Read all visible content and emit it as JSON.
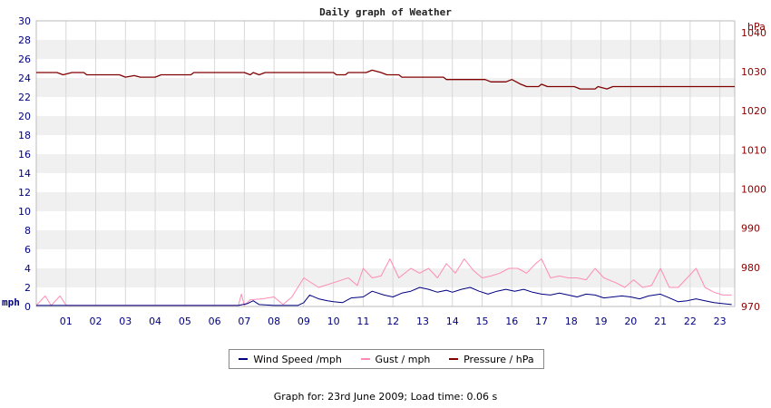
{
  "chart_data": {
    "type": "line",
    "title": "Daily graph of Weather",
    "y_left": {
      "unit": "mph",
      "range": [
        0,
        30
      ],
      "ticks": [
        0,
        2,
        4,
        6,
        8,
        10,
        12,
        14,
        16,
        18,
        20,
        22,
        24,
        26,
        28,
        30
      ]
    },
    "y_right": {
      "unit": "hPa",
      "range": [
        970,
        1043
      ],
      "ticks": [
        970,
        980,
        990,
        1000,
        1010,
        1020,
        1030,
        1040
      ]
    },
    "x": {
      "range": [
        0,
        23.5
      ],
      "tick_labels": [
        "01",
        "02",
        "03",
        "04",
        "05",
        "06",
        "07",
        "08",
        "09",
        "10",
        "11",
        "12",
        "13",
        "14",
        "15",
        "16",
        "17",
        "18",
        "19",
        "20",
        "21",
        "22",
        "23"
      ]
    },
    "grid": true,
    "legend_position": "bottom-center",
    "series": [
      {
        "name": "Wind Speed /mph",
        "axis": "left",
        "color": "#000080",
        "points": [
          [
            0,
            0.1
          ],
          [
            6.8,
            0.1
          ],
          [
            7.1,
            0.3
          ],
          [
            7.3,
            0.6
          ],
          [
            7.5,
            0.2
          ],
          [
            8.0,
            0.1
          ],
          [
            8.8,
            0.1
          ],
          [
            9.0,
            0.4
          ],
          [
            9.2,
            1.2
          ],
          [
            9.5,
            0.8
          ],
          [
            9.8,
            0.6
          ],
          [
            10.0,
            0.5
          ],
          [
            10.3,
            0.4
          ],
          [
            10.6,
            0.9
          ],
          [
            11.0,
            1.0
          ],
          [
            11.3,
            1.6
          ],
          [
            11.7,
            1.2
          ],
          [
            12.0,
            1.0
          ],
          [
            12.3,
            1.4
          ],
          [
            12.6,
            1.6
          ],
          [
            12.9,
            2.0
          ],
          [
            13.2,
            1.8
          ],
          [
            13.5,
            1.5
          ],
          [
            13.8,
            1.7
          ],
          [
            14.0,
            1.5
          ],
          [
            14.3,
            1.8
          ],
          [
            14.6,
            2.0
          ],
          [
            14.9,
            1.6
          ],
          [
            15.2,
            1.3
          ],
          [
            15.5,
            1.6
          ],
          [
            15.8,
            1.8
          ],
          [
            16.1,
            1.6
          ],
          [
            16.4,
            1.8
          ],
          [
            16.7,
            1.5
          ],
          [
            17.0,
            1.3
          ],
          [
            17.3,
            1.2
          ],
          [
            17.6,
            1.4
          ],
          [
            17.9,
            1.2
          ],
          [
            18.2,
            1.0
          ],
          [
            18.5,
            1.3
          ],
          [
            18.8,
            1.2
          ],
          [
            19.1,
            0.9
          ],
          [
            19.4,
            1.0
          ],
          [
            19.7,
            1.1
          ],
          [
            20.0,
            1.0
          ],
          [
            20.3,
            0.8
          ],
          [
            20.6,
            1.1
          ],
          [
            21.0,
            1.3
          ],
          [
            21.3,
            0.9
          ],
          [
            21.6,
            0.5
          ],
          [
            21.9,
            0.6
          ],
          [
            22.2,
            0.8
          ],
          [
            22.5,
            0.6
          ],
          [
            22.8,
            0.4
          ],
          [
            23.1,
            0.3
          ],
          [
            23.4,
            0.2
          ]
        ]
      },
      {
        "name": "Gust / mph",
        "axis": "left",
        "color": "#ff8cb4",
        "points": [
          [
            0,
            0.1
          ],
          [
            0.3,
            1.1
          ],
          [
            0.5,
            0.1
          ],
          [
            0.8,
            1.1
          ],
          [
            1.0,
            0.1
          ],
          [
            6.8,
            0.1
          ],
          [
            6.9,
            1.3
          ],
          [
            7.0,
            0.1
          ],
          [
            7.2,
            0.7
          ],
          [
            7.6,
            0.8
          ],
          [
            8.0,
            1.0
          ],
          [
            8.3,
            0.2
          ],
          [
            8.6,
            1.0
          ],
          [
            9.0,
            3.0
          ],
          [
            9.5,
            2.0
          ],
          [
            10.0,
            2.5
          ],
          [
            10.5,
            3.0
          ],
          [
            10.8,
            2.2
          ],
          [
            11.0,
            4.0
          ],
          [
            11.3,
            3.0
          ],
          [
            11.6,
            3.2
          ],
          [
            11.9,
            5.0
          ],
          [
            12.2,
            3.0
          ],
          [
            12.6,
            4.0
          ],
          [
            12.9,
            3.5
          ],
          [
            13.2,
            4.0
          ],
          [
            13.5,
            3.0
          ],
          [
            13.8,
            4.5
          ],
          [
            14.1,
            3.5
          ],
          [
            14.4,
            5.0
          ],
          [
            14.7,
            3.8
          ],
          [
            15.0,
            3.0
          ],
          [
            15.3,
            3.2
          ],
          [
            15.6,
            3.5
          ],
          [
            15.9,
            4.0
          ],
          [
            16.2,
            4.0
          ],
          [
            16.5,
            3.5
          ],
          [
            16.8,
            4.5
          ],
          [
            17.0,
            5.0
          ],
          [
            17.3,
            3.0
          ],
          [
            17.6,
            3.2
          ],
          [
            17.9,
            3.0
          ],
          [
            18.2,
            3.0
          ],
          [
            18.5,
            2.8
          ],
          [
            18.8,
            4.0
          ],
          [
            19.1,
            3.0
          ],
          [
            19.5,
            2.5
          ],
          [
            19.8,
            2.0
          ],
          [
            20.1,
            2.8
          ],
          [
            20.4,
            2.0
          ],
          [
            20.7,
            2.2
          ],
          [
            21.0,
            4.0
          ],
          [
            21.3,
            2.0
          ],
          [
            21.6,
            2.0
          ],
          [
            21.9,
            3.0
          ],
          [
            22.2,
            4.0
          ],
          [
            22.5,
            2.0
          ],
          [
            22.8,
            1.5
          ],
          [
            23.1,
            1.2
          ],
          [
            23.4,
            1.2
          ]
        ]
      },
      {
        "name": "Pressure / hPa",
        "axis": "right",
        "color": "#800000",
        "points": [
          [
            0,
            1029.8
          ],
          [
            0.7,
            1029.8
          ],
          [
            0.9,
            1029.2
          ],
          [
            1.2,
            1029.8
          ],
          [
            1.6,
            1029.8
          ],
          [
            1.7,
            1029.2
          ],
          [
            2.8,
            1029.2
          ],
          [
            3.0,
            1028.6
          ],
          [
            3.3,
            1029.0
          ],
          [
            3.5,
            1028.6
          ],
          [
            4.0,
            1028.6
          ],
          [
            4.2,
            1029.2
          ],
          [
            5.2,
            1029.2
          ],
          [
            5.3,
            1029.8
          ],
          [
            7.0,
            1029.8
          ],
          [
            7.2,
            1029.2
          ],
          [
            7.3,
            1029.8
          ],
          [
            7.5,
            1029.2
          ],
          [
            7.7,
            1029.8
          ],
          [
            10.0,
            1029.8
          ],
          [
            10.1,
            1029.2
          ],
          [
            10.4,
            1029.2
          ],
          [
            10.5,
            1029.8
          ],
          [
            11.1,
            1029.8
          ],
          [
            11.3,
            1030.4
          ],
          [
            11.6,
            1029.8
          ],
          [
            11.8,
            1029.2
          ],
          [
            12.2,
            1029.2
          ],
          [
            12.3,
            1028.6
          ],
          [
            13.7,
            1028.6
          ],
          [
            13.8,
            1028.0
          ],
          [
            15.1,
            1028.0
          ],
          [
            15.3,
            1027.4
          ],
          [
            15.8,
            1027.4
          ],
          [
            16.0,
            1028.0
          ],
          [
            16.3,
            1026.8
          ],
          [
            16.5,
            1026.2
          ],
          [
            16.9,
            1026.2
          ],
          [
            17.0,
            1026.8
          ],
          [
            17.2,
            1026.2
          ],
          [
            18.1,
            1026.2
          ],
          [
            18.3,
            1025.6
          ],
          [
            18.8,
            1025.6
          ],
          [
            18.9,
            1026.2
          ],
          [
            19.2,
            1025.6
          ],
          [
            19.4,
            1026.2
          ],
          [
            23.5,
            1026.2
          ]
        ]
      }
    ],
    "footer": "Graph for: 23rd June 2009; Load time: 0.06 s"
  }
}
